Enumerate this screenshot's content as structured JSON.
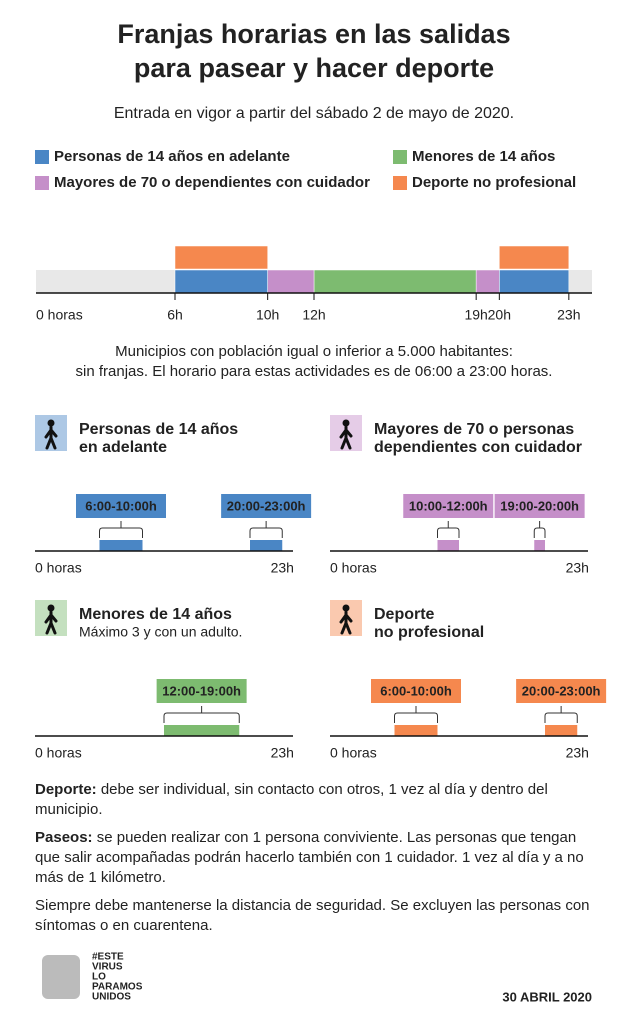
{
  "header": {
    "title": [
      "Franjas horarias en las salidas",
      "para pasear y hacer deporte"
    ],
    "subtitle": "Entrada en vigor a partir del sábado 2 de mayo de 2020."
  },
  "main_chart": {
    "xlim": [
      0,
      24
    ],
    "xticks": [
      {
        "value": 0,
        "label": "0 horas"
      },
      {
        "value": 6,
        "label": "6h"
      },
      {
        "value": 10,
        "label": "10h"
      },
      {
        "value": 12,
        "label": "12h"
      },
      {
        "value": 19,
        "label": "19h"
      },
      {
        "value": 20,
        "label": "20h"
      },
      {
        "value": 23,
        "label": "23h"
      }
    ],
    "series": [
      {
        "name": "Personas de 14 años en adelante",
        "color": "#4a86c5",
        "ranges": [
          [
            6,
            10
          ],
          [
            20,
            23
          ]
        ]
      },
      {
        "name": "Menores de 14 años",
        "color": "#7dbb70",
        "ranges": [
          [
            12,
            19
          ]
        ]
      },
      {
        "name": "Mayores de 70 o dependientes con cuidador",
        "color": "#c58fc9",
        "ranges": [
          [
            10,
            12
          ],
          [
            19,
            20
          ]
        ]
      },
      {
        "name": "Deporte no profesional",
        "color": "#f5884e",
        "ranges": [
          [
            6,
            10
          ],
          [
            20,
            23
          ]
        ]
      }
    ],
    "note": [
      "Municipios con población igual o inferior a 5.000 habitantes:",
      "sin franjas. El horario para estas actividades es de 06:00 a 23:00 horas."
    ]
  },
  "panels": [
    {
      "title": [
        "Personas de 14 años",
        "en adelante"
      ],
      "color": "#4a86c5",
      "xlim": [
        0,
        24
      ],
      "xticks": [
        {
          "value": 0,
          "label": "0 horas"
        },
        {
          "value": 23,
          "label": "23h"
        }
      ],
      "ranges": [
        {
          "start": 6,
          "end": 10,
          "label": "6:00-10:00h"
        },
        {
          "start": 20,
          "end": 23,
          "label": "20:00-23:00h"
        }
      ]
    },
    {
      "title": [
        "Mayores de 70 o personas",
        "dependientes con cuidador"
      ],
      "color": "#c58fc9",
      "xlim": [
        0,
        24
      ],
      "xticks": [
        {
          "value": 0,
          "label": "0 horas"
        },
        {
          "value": 23,
          "label": "23h"
        }
      ],
      "ranges": [
        {
          "start": 10,
          "end": 12,
          "label": "10:00-12:00h"
        },
        {
          "start": 19,
          "end": 20,
          "label": "19:00-20:00h"
        }
      ]
    },
    {
      "title": [
        "Menores de 14 años"
      ],
      "subtitle": "Máximo 3 y con un adulto.",
      "color": "#7dbb70",
      "xlim": [
        0,
        24
      ],
      "xticks": [
        {
          "value": 0,
          "label": "0 horas"
        },
        {
          "value": 23,
          "label": "23h"
        }
      ],
      "ranges": [
        {
          "start": 12,
          "end": 19,
          "label": "12:00-19:00h"
        }
      ]
    },
    {
      "title": [
        "Deporte",
        "no profesional"
      ],
      "color": "#f5884e",
      "xlim": [
        0,
        24
      ],
      "xticks": [
        {
          "value": 0,
          "label": "0 horas"
        },
        {
          "value": 23,
          "label": "23h"
        }
      ],
      "ranges": [
        {
          "start": 6,
          "end": 10,
          "label": "6:00-10:00h"
        },
        {
          "start": 20,
          "end": 23,
          "label": "20:00-23:00h"
        }
      ]
    }
  ],
  "notes": [
    {
      "lead": "Deporte:",
      "text": "debe ser individual, sin contacto con otros, 1 vez al día y dentro del municipio."
    },
    {
      "lead": "Paseos:",
      "text": "se pueden realizar con 1 persona conviviente. Las personas que tengan que salir acompañadas podrán hacerlo también con 1 cuidador. 1 vez al día y a no más de 1 kilómetro."
    },
    {
      "text": "Siempre debe mantenerse la distancia de seguridad. Se excluyen las personas con síntomas o en cuarentena."
    }
  ],
  "footer": {
    "logo": [
      "#ESTE",
      "VIRUS",
      "LO",
      "PARAMOS",
      "UNIDOS"
    ],
    "date": "30 ABRIL 2020"
  }
}
